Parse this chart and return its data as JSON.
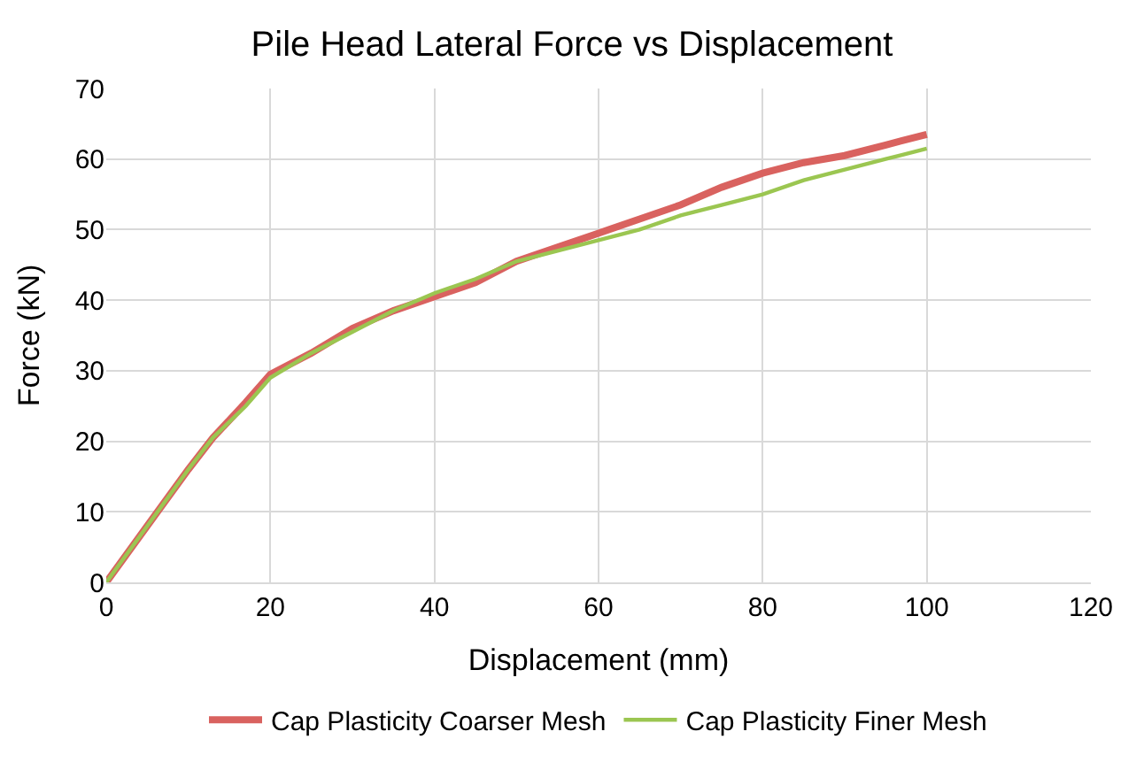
{
  "chart_data": {
    "type": "line",
    "title": "Pile Head Lateral Force vs Displacement",
    "xlabel": "Displacement (mm)",
    "ylabel": "Force (kN)",
    "xlim": [
      0,
      120
    ],
    "xticks": [
      0,
      20,
      40,
      60,
      80,
      100,
      120
    ],
    "ylim": [
      0,
      70
    ],
    "yticks": [
      0,
      10,
      20,
      30,
      40,
      50,
      60,
      70
    ],
    "grid": true,
    "legend": "bottom",
    "marker": "none",
    "line_style": "solid",
    "series": [
      {
        "name": "Cap Plasticity Coarser Mesh",
        "color": "#d9625f",
        "x": [
          0,
          5,
          10,
          13,
          17,
          20,
          25,
          30,
          35,
          40,
          45,
          50,
          55,
          60,
          65,
          70,
          75,
          80,
          85,
          90,
          95,
          100
        ],
        "values": [
          0,
          8,
          16,
          20.5,
          25.5,
          29.5,
          32.5,
          36,
          38.5,
          40.5,
          42.5,
          45.5,
          47.5,
          49.5,
          51.5,
          53.5,
          56,
          58,
          59.5,
          60.5,
          62,
          63.5
        ]
      },
      {
        "name": "Cap Plasticity Finer Mesh",
        "color": "#9bc651",
        "x": [
          0,
          5,
          10,
          13,
          17,
          20,
          25,
          30,
          35,
          40,
          45,
          50,
          55,
          60,
          65,
          70,
          75,
          80,
          85,
          90,
          95,
          100
        ],
        "values": [
          0,
          8,
          16,
          20.5,
          25,
          29,
          32.5,
          35.5,
          38.5,
          41,
          43,
          45.5,
          47,
          48.5,
          50,
          52,
          53.5,
          55,
          57,
          58.5,
          60,
          61.5
        ]
      }
    ]
  }
}
